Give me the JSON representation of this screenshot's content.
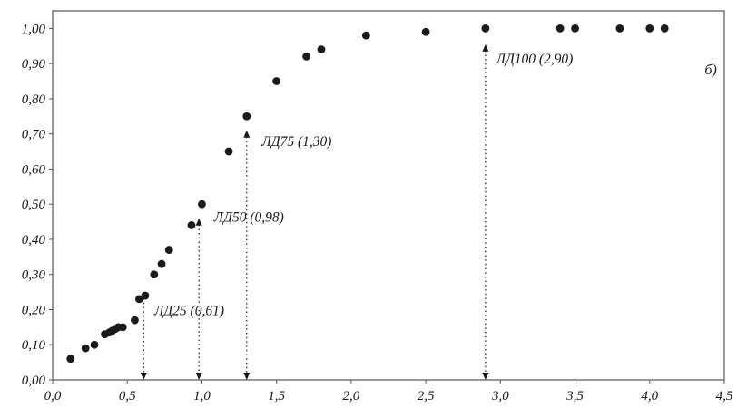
{
  "chart_data": {
    "type": "scatter",
    "title": "",
    "xlabel": "",
    "ylabel": "",
    "figure_label": "б)",
    "xlim": [
      0,
      4.5
    ],
    "ylim": [
      0,
      1.05
    ],
    "grid": false,
    "legend": null,
    "marker_color": "#1a1a1a",
    "axis_color": "#555555",
    "plot_bg": "#ffffff",
    "x_ticks": [
      0.0,
      0.5,
      1.0,
      1.5,
      2.0,
      2.5,
      3.0,
      3.5,
      4.0,
      4.5
    ],
    "x_tick_labels": [
      "0,0",
      "0,5",
      "1,0",
      "1,5",
      "2,0",
      "2,5",
      "3,0",
      "3,5",
      "4,0",
      "4,5"
    ],
    "y_ticks": [
      0.0,
      0.1,
      0.2,
      0.3,
      0.4,
      0.5,
      0.6,
      0.7,
      0.8,
      0.9,
      1.0
    ],
    "y_tick_labels": [
      "0,00",
      "0,10",
      "0,20",
      "0,30",
      "0,40",
      "0,50",
      "0,60",
      "0,70",
      "0,80",
      "0,90",
      "1,00"
    ],
    "points": [
      [
        0.12,
        0.06
      ],
      [
        0.22,
        0.09
      ],
      [
        0.28,
        0.1
      ],
      [
        0.35,
        0.13
      ],
      [
        0.38,
        0.135
      ],
      [
        0.4,
        0.14
      ],
      [
        0.42,
        0.145
      ],
      [
        0.44,
        0.15
      ],
      [
        0.47,
        0.15
      ],
      [
        0.55,
        0.17
      ],
      [
        0.58,
        0.23
      ],
      [
        0.62,
        0.24
      ],
      [
        0.68,
        0.3
      ],
      [
        0.73,
        0.33
      ],
      [
        0.78,
        0.37
      ],
      [
        0.93,
        0.44
      ],
      [
        1.0,
        0.5
      ],
      [
        1.18,
        0.65
      ],
      [
        1.3,
        0.75
      ],
      [
        1.5,
        0.85
      ],
      [
        1.7,
        0.92
      ],
      [
        1.8,
        0.94
      ],
      [
        2.1,
        0.98
      ],
      [
        2.5,
        0.99
      ],
      [
        2.9,
        1.0
      ],
      [
        3.4,
        1.0
      ],
      [
        3.5,
        1.0
      ],
      [
        3.8,
        1.0
      ],
      [
        4.0,
        1.0
      ],
      [
        4.1,
        1.0
      ]
    ],
    "annotations": [
      {
        "label": "ЛД25 (0,61)",
        "arrow_x": 0.61,
        "arrow_top": 0.25,
        "label_x": 0.68,
        "label_y": 0.185
      },
      {
        "label": "ЛД50 (0,98)",
        "arrow_x": 0.98,
        "arrow_top": 0.46,
        "label_x": 1.08,
        "label_y": 0.45
      },
      {
        "label": "ЛД75 (1,30)",
        "arrow_x": 1.3,
        "arrow_top": 0.71,
        "label_x": 1.4,
        "label_y": 0.665
      },
      {
        "label": "ЛД100 (2,90)",
        "arrow_x": 2.9,
        "arrow_top": 0.955,
        "label_x": 2.97,
        "label_y": 0.9
      }
    ]
  }
}
